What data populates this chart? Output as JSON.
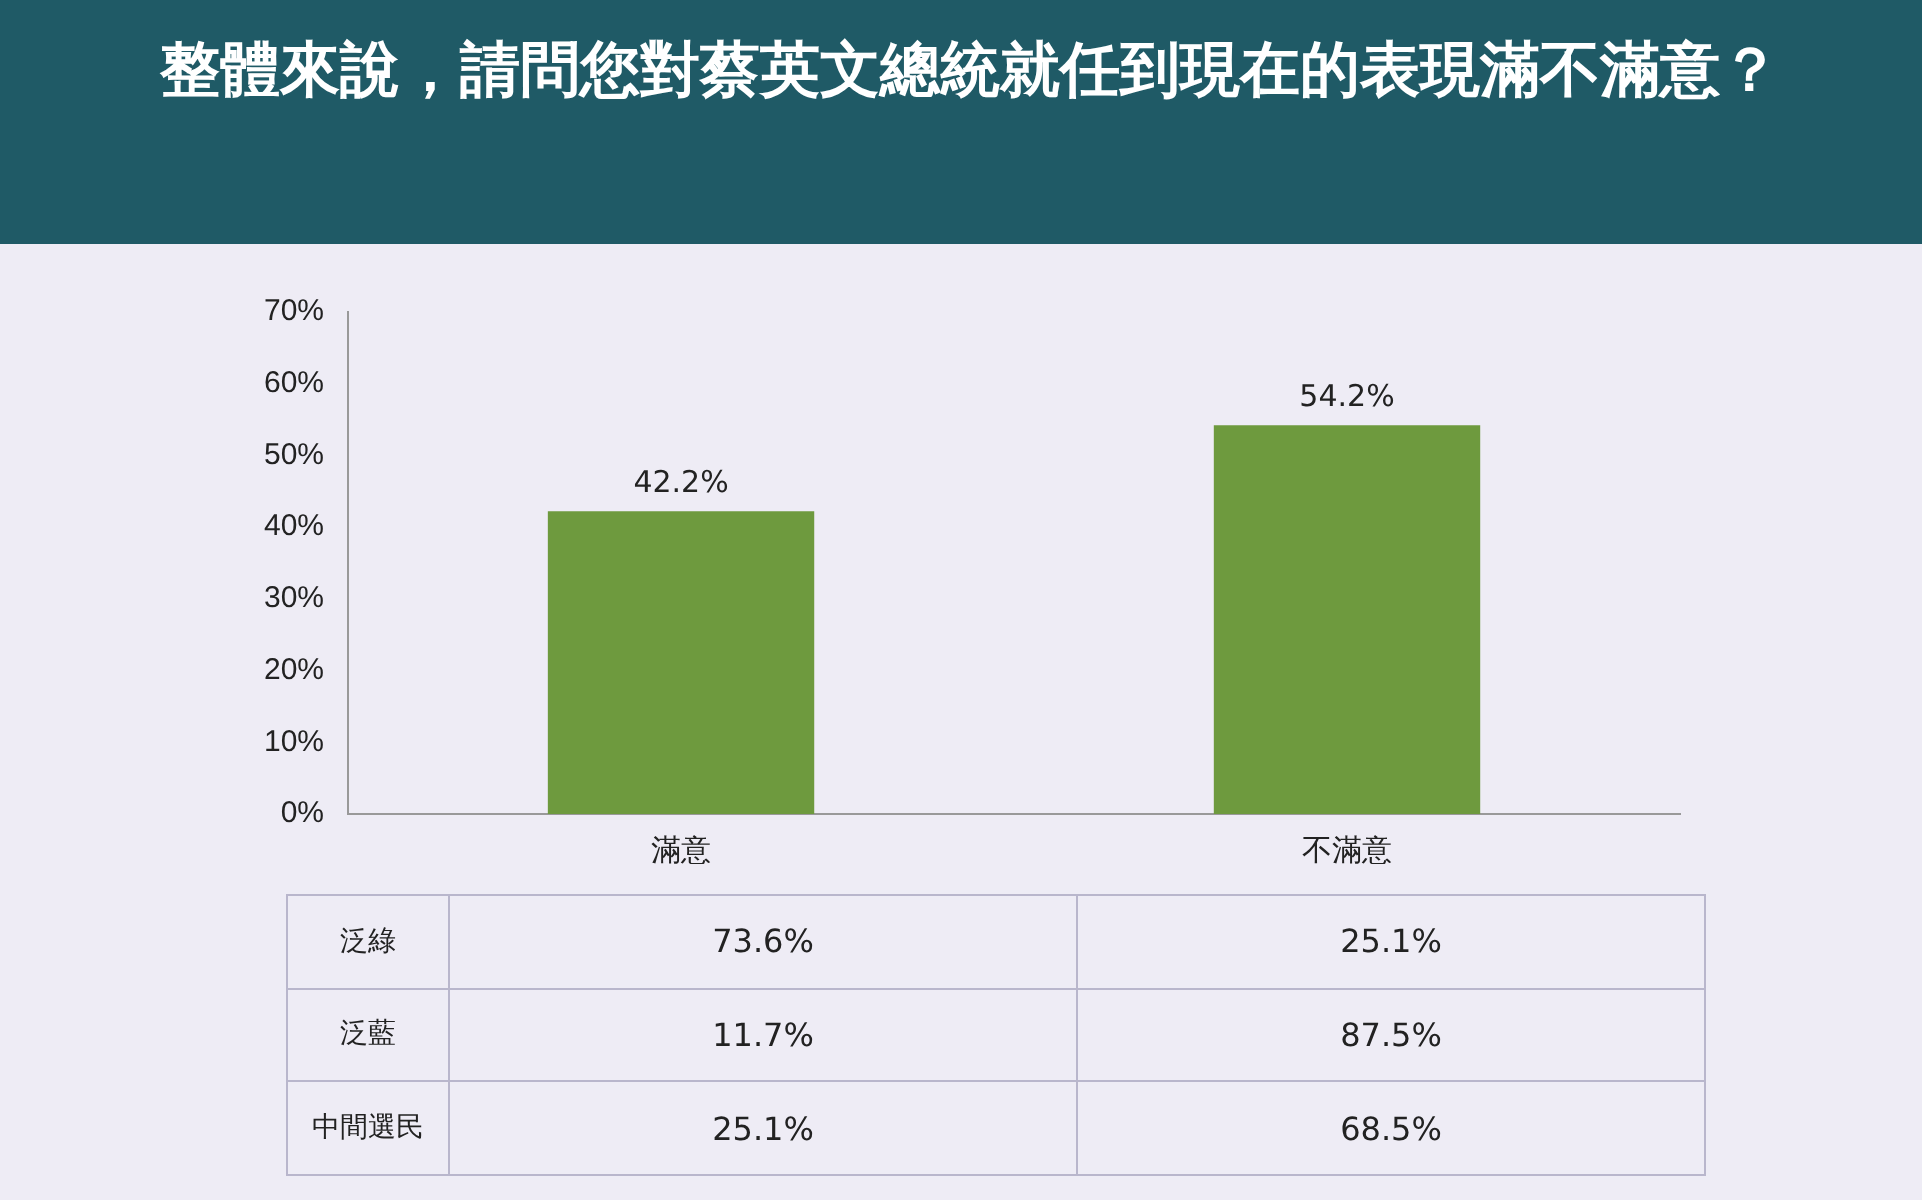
{
  "chart_data": {
    "type": "bar",
    "title": "整體來說，請問您對蔡英文總統就任到現在的表現滿不滿意？",
    "categories": [
      "滿意",
      "不滿意"
    ],
    "values": [
      42.2,
      54.2
    ],
    "value_labels": [
      "42.2%",
      "54.2%"
    ],
    "color": "#6e9a3e",
    "ylim": [
      0,
      70
    ],
    "yticks": [
      {
        "value": 0,
        "label": "0%"
      },
      {
        "value": 10,
        "label": "10%"
      },
      {
        "value": 20,
        "label": "20%"
      },
      {
        "value": 30,
        "label": "30%"
      },
      {
        "value": 40,
        "label": "40%"
      },
      {
        "value": 50,
        "label": "50%"
      },
      {
        "value": 60,
        "label": "60%"
      },
      {
        "value": 70,
        "label": "70%"
      }
    ],
    "grid": false,
    "annotations": [
      "泛綠",
      "73.6%",
      "25.1%",
      "泛藍",
      "11.7%",
      "87.5%",
      "中間選民",
      "25.1%",
      "68.5%"
    ]
  }
}
